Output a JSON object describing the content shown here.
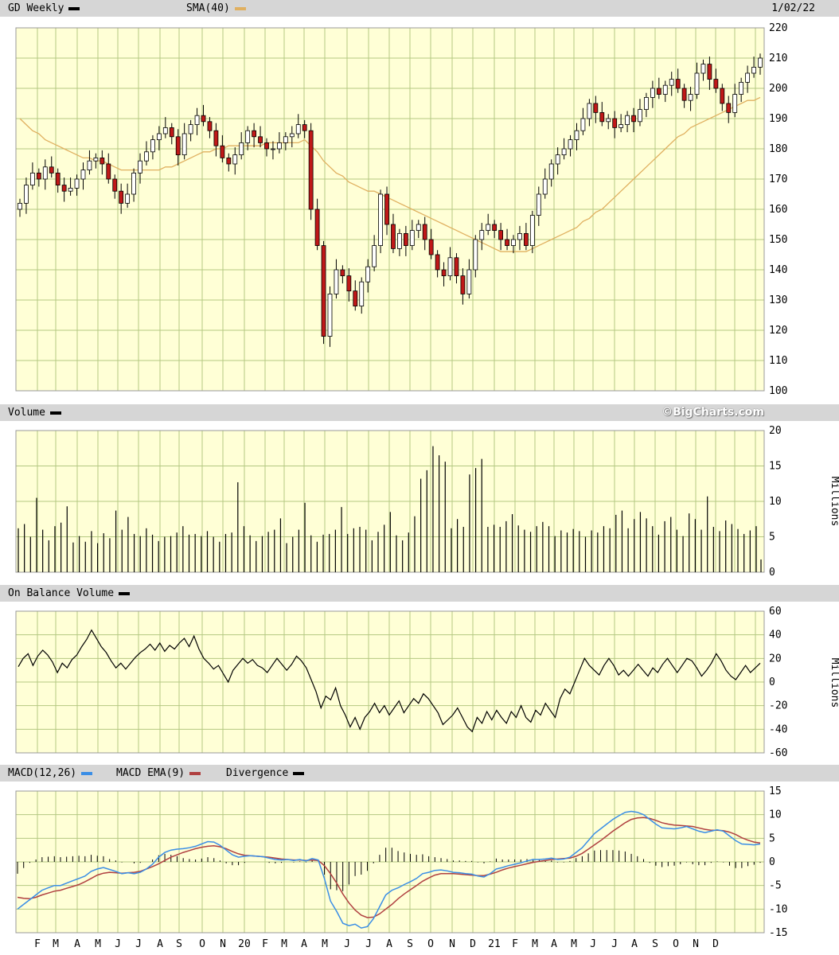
{
  "header": {
    "symbol_label": "GD Weekly",
    "sma_label": "SMA(40)",
    "date": "1/02/22",
    "sma_color": "#e0b060"
  },
  "volume_header": {
    "label": "Volume",
    "credit": "©BigCharts.com"
  },
  "obv_header": {
    "label": "On Balance Volume"
  },
  "macd_header": {
    "macd_label": "MACD(12,26)",
    "ema_label": "MACD EMA(9)",
    "div_label": "Divergence",
    "macd_color": "#3a8ee6",
    "ema_color": "#b04040"
  },
  "units": {
    "volume": "Millions",
    "obv": "Millions"
  },
  "x_labels": [
    "F",
    "M",
    "A",
    "M",
    "J",
    "J",
    "A",
    "S",
    "O",
    "N",
    "20",
    "F",
    "M",
    "A",
    "M",
    "J",
    "J",
    "A",
    "S",
    "O",
    "N",
    "D",
    "21",
    "F",
    "M",
    "A",
    "M",
    "J",
    "J",
    "A",
    "S",
    "O",
    "N",
    "D"
  ],
  "chart_data": [
    {
      "type": "candlestick",
      "name": "GD Weekly",
      "ylim": [
        100,
        220
      ],
      "yticks": [
        100,
        110,
        120,
        130,
        140,
        150,
        160,
        170,
        180,
        190,
        200,
        210,
        220
      ],
      "close": [
        162,
        168,
        172,
        170,
        174,
        172,
        168,
        166,
        167,
        170,
        173,
        176,
        177,
        175,
        170,
        166,
        162,
        165,
        172,
        176,
        179,
        183,
        185,
        187,
        184,
        178,
        185,
        188,
        191,
        189,
        186,
        181,
        177,
        175,
        178,
        182,
        186,
        184,
        182,
        180,
        180,
        182,
        184,
        185,
        188,
        186,
        160,
        148,
        118,
        132,
        140,
        138,
        133,
        128,
        136,
        141,
        148,
        165,
        155,
        147,
        152,
        148,
        153,
        155,
        150,
        145,
        140,
        138,
        144,
        138,
        132,
        140,
        150,
        153,
        155,
        153,
        150,
        148,
        150,
        152,
        148,
        158,
        165,
        170,
        175,
        178,
        180,
        183,
        186,
        190,
        195,
        192,
        189,
        190,
        187,
        188,
        191,
        189,
        193,
        197,
        200,
        198,
        201,
        203,
        200,
        196,
        198,
        205,
        208,
        203,
        200,
        195,
        192,
        198,
        202,
        205,
        207,
        210
      ],
      "sma": [
        190,
        188,
        186,
        185,
        183,
        182,
        181,
        180,
        179,
        178,
        177,
        177,
        176,
        176,
        175,
        174,
        173,
        173,
        173,
        173,
        173,
        173,
        173,
        174,
        174,
        175,
        176,
        177,
        178,
        179,
        179,
        180,
        180,
        181,
        181,
        181,
        181,
        181,
        181,
        182,
        182,
        182,
        182,
        182,
        182,
        183,
        181,
        179,
        176,
        174,
        172,
        171,
        169,
        168,
        167,
        166,
        166,
        165,
        164,
        163,
        162,
        161,
        160,
        159,
        158,
        157,
        156,
        155,
        154,
        153,
        152,
        151,
        150,
        149,
        148,
        147,
        146,
        146,
        146,
        146,
        146,
        147,
        148,
        149,
        150,
        151,
        152,
        153,
        154,
        156,
        157,
        159,
        160,
        162,
        164,
        166,
        168,
        170,
        172,
        174,
        176,
        178,
        180,
        182,
        184,
        185,
        187,
        188,
        189,
        190,
        191,
        192,
        193,
        194,
        195,
        196,
        196,
        197
      ],
      "x_range": [
        "2019-01",
        "2021-12"
      ]
    },
    {
      "type": "bar",
      "name": "Volume",
      "ylim": [
        0,
        20
      ],
      "yticks": [
        0,
        5,
        10,
        15,
        20
      ],
      "ylabel": "Millions",
      "values": [
        6.2,
        6.8,
        5,
        10.5,
        6,
        4.5,
        6.5,
        7,
        9.3,
        4.2,
        5.1,
        4.3,
        5.8,
        4.1,
        5.5,
        4.8,
        8.7,
        6,
        7.8,
        5.4,
        5.1,
        6.2,
        5.3,
        4.4,
        5,
        5.1,
        5.6,
        6.5,
        5.3,
        5.4,
        5.1,
        5.8,
        5,
        4.3,
        5.4,
        5.6,
        12.7,
        6.5,
        5.2,
        4.4,
        5.1,
        5.7,
        6,
        7.6,
        4.1,
        5,
        6,
        9.8,
        5.2,
        4.3,
        5.3,
        5.4,
        6,
        9.2,
        5.4,
        6.2,
        6.4,
        6,
        4.5,
        5.7,
        6.7,
        8.5,
        5.2,
        4.5,
        5.6,
        7.9,
        13.2,
        14.4,
        17.8,
        16.5,
        15.6,
        6.2,
        7.5,
        6.4,
        13.8,
        14.7,
        16,
        6.4,
        6.7,
        6.4,
        7.2,
        8.2,
        6.6,
        6,
        5.7,
        6.5,
        7.1,
        6.5,
        5.1,
        5.9,
        5.6,
        6.1,
        5.8,
        5,
        5.9,
        5.6,
        6.5,
        6.2,
        8.1,
        8.7,
        6.2,
        7.5,
        8.5,
        7.6,
        6.5,
        5.3,
        7.2,
        7.8,
        6,
        5.1,
        8.3,
        7.5,
        6,
        10.7,
        6.4,
        5.8,
        7.3,
        6.8,
        6.1,
        5.4,
        5.9,
        6.5
      ],
      "partial_last": 1.8
    },
    {
      "type": "line",
      "name": "On Balance Volume",
      "ylim": [
        -60,
        60
      ],
      "yticks": [
        -60,
        -40,
        -20,
        0,
        20,
        40,
        60
      ],
      "ylabel": "Millions",
      "values": [
        13,
        20,
        24,
        14,
        22,
        27,
        23,
        17,
        8,
        16,
        12,
        19,
        23,
        30,
        36,
        44,
        37,
        30,
        25,
        18,
        12,
        16,
        11,
        16,
        21,
        25,
        28,
        32,
        27,
        33,
        26,
        31,
        28,
        33,
        37,
        30,
        39,
        28,
        20,
        16,
        11,
        14,
        7,
        0,
        10,
        15,
        20,
        16,
        19,
        14,
        12,
        8,
        14,
        20,
        15,
        10,
        15,
        22,
        18,
        12,
        2,
        -8,
        -22,
        -12,
        -15,
        -5,
        -20,
        -28,
        -38,
        -30,
        -40,
        -30,
        -25,
        -18,
        -26,
        -20,
        -28,
        -22,
        -16,
        -26,
        -20,
        -14,
        -18,
        -10,
        -14,
        -20,
        -26,
        -36,
        -32,
        -28,
        -22,
        -30,
        -38,
        -42,
        -30,
        -35,
        -25,
        -32,
        -24,
        -30,
        -35,
        -25,
        -30,
        -20,
        -30,
        -34,
        -24,
        -28,
        -18,
        -24,
        -30,
        -14,
        -6,
        -10,
        0,
        10,
        20,
        14,
        10,
        6,
        14,
        20,
        14,
        6
      ],
      "tail": [
        10,
        5,
        10,
        15,
        10,
        5,
        12,
        8,
        15,
        20,
        14,
        8,
        14,
        20,
        18,
        12,
        5,
        10,
        16,
        24,
        18,
        10,
        5,
        2,
        8,
        14,
        8,
        12,
        16
      ]
    },
    {
      "type": "line",
      "name": "MACD(12,26)",
      "ylim": [
        -15,
        15
      ],
      "yticks": [
        -15,
        -10,
        -5,
        0,
        5,
        10,
        15
      ],
      "macd": [
        -10,
        -9,
        -8,
        -7,
        -6,
        -5.5,
        -5,
        -5,
        -4.5,
        -4,
        -3.5,
        -3,
        -2,
        -1.5,
        -1.2,
        -1.6,
        -2,
        -2.5,
        -2.3,
        -2.5,
        -2.2,
        -1.5,
        -0.5,
        1,
        2,
        2.5,
        2.7,
        2.8,
        3,
        3.3,
        3.8,
        4.3,
        4.2,
        3.5,
        2.5,
        1.5,
        1,
        1.2,
        1.3,
        1.2,
        1.1,
        0.8,
        0.5,
        0.4,
        0.5,
        0.3,
        0.5,
        0.2,
        0.7,
        0.4,
        -3.5,
        -8.3,
        -10.5,
        -13,
        -13.5,
        -13.2,
        -14,
        -13.7,
        -12,
        -9.5,
        -7,
        -6,
        -5.5,
        -4.8,
        -4.2,
        -3.5,
        -2.5,
        -2.2,
        -1.8,
        -1.7,
        -1.9,
        -2.2,
        -2.3,
        -2.5,
        -2.6,
        -3,
        -3.2,
        -2.5,
        -1.5,
        -1.2,
        -0.8,
        -0.5,
        -0.2,
        0.2,
        0.5,
        0.5,
        0.6,
        0.8,
        0.5,
        0.6,
        1,
        2,
        3,
        4.5,
        6,
        7,
        8,
        9,
        9.8,
        10.5,
        10.7,
        10.5,
        10,
        9,
        8,
        7.2,
        7.1,
        7,
        7.2,
        7.5,
        7,
        6.5,
        6.2,
        6.5,
        6.8,
        6.5,
        5.5,
        4.5,
        3.8,
        3.7,
        3.6,
        3.8
      ],
      "ema": [
        -7.5,
        -7.7,
        -7.8,
        -7.5,
        -7,
        -6.6,
        -6.2,
        -6,
        -5.6,
        -5.2,
        -4.8,
        -4.2,
        -3.5,
        -2.8,
        -2.4,
        -2.2,
        -2.3,
        -2.4,
        -2.3,
        -2.2,
        -2,
        -1.5,
        -1,
        -0.4,
        0.3,
        1,
        1.5,
        2,
        2.4,
        2.8,
        3.1,
        3.3,
        3.4,
        3.2,
        2.8,
        2.2,
        1.7,
        1.4,
        1.3,
        1.2,
        1.1,
        1,
        0.8,
        0.6,
        0.5,
        0.4,
        0.4,
        0.3,
        0.4,
        0.3,
        -0.8,
        -2.5,
        -4.5,
        -6.8,
        -8.7,
        -10.2,
        -11.3,
        -11.8,
        -11.7,
        -11,
        -10,
        -9,
        -7.8,
        -6.8,
        -5.9,
        -5,
        -4.1,
        -3.4,
        -2.8,
        -2.5,
        -2.5,
        -2.5,
        -2.6,
        -2.7,
        -2.8,
        -2.9,
        -2.9,
        -2.6,
        -2.2,
        -1.7,
        -1.3,
        -1,
        -0.7,
        -0.4,
        -0.1,
        0.1,
        0.3,
        0.5,
        0.6,
        0.7,
        0.8,
        1.2,
        1.8,
        2.7,
        3.6,
        4.5,
        5.5,
        6.5,
        7.4,
        8.3,
        9,
        9.3,
        9.4,
        9.2,
        8.8,
        8.3,
        8,
        7.8,
        7.7,
        7.6,
        7.5,
        7.2,
        6.9,
        6.7,
        6.7,
        6.6,
        6.3,
        5.8,
        5.1,
        4.6,
        4.2,
        4
      ]
    }
  ]
}
